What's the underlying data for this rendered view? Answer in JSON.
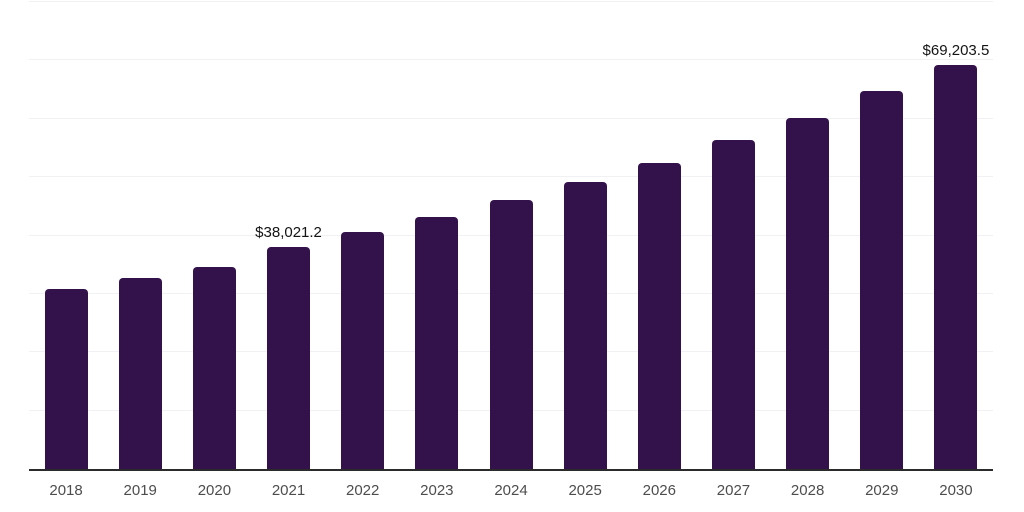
{
  "chart_data": {
    "type": "bar",
    "title": "",
    "xlabel": "",
    "ylabel": "",
    "categories": [
      "2018",
      "2019",
      "2020",
      "2021",
      "2022",
      "2023",
      "2024",
      "2025",
      "2026",
      "2027",
      "2028",
      "2029",
      "2030"
    ],
    "values": [
      30800,
      32700,
      34650,
      38021.2,
      40600,
      43200,
      46000,
      49100,
      52500,
      56300,
      60200,
      64800,
      69203.5
    ],
    "visible_value_labels": {
      "2021": "$38,021.2",
      "2030": "$69,203.5"
    },
    "ylim": [
      0,
      80000
    ],
    "y_gridline_interval": 10000,
    "y_axis_tick_labels_shown": false,
    "grid": "horizontal",
    "legend_position": "none",
    "colors": {
      "bar": "#33124B",
      "gridline": "#F1F1F3",
      "axis_line": "#2B2B2B",
      "tick_label": "#4D4D4D",
      "value_label": "#141414",
      "background": "#FFFFFF"
    }
  }
}
